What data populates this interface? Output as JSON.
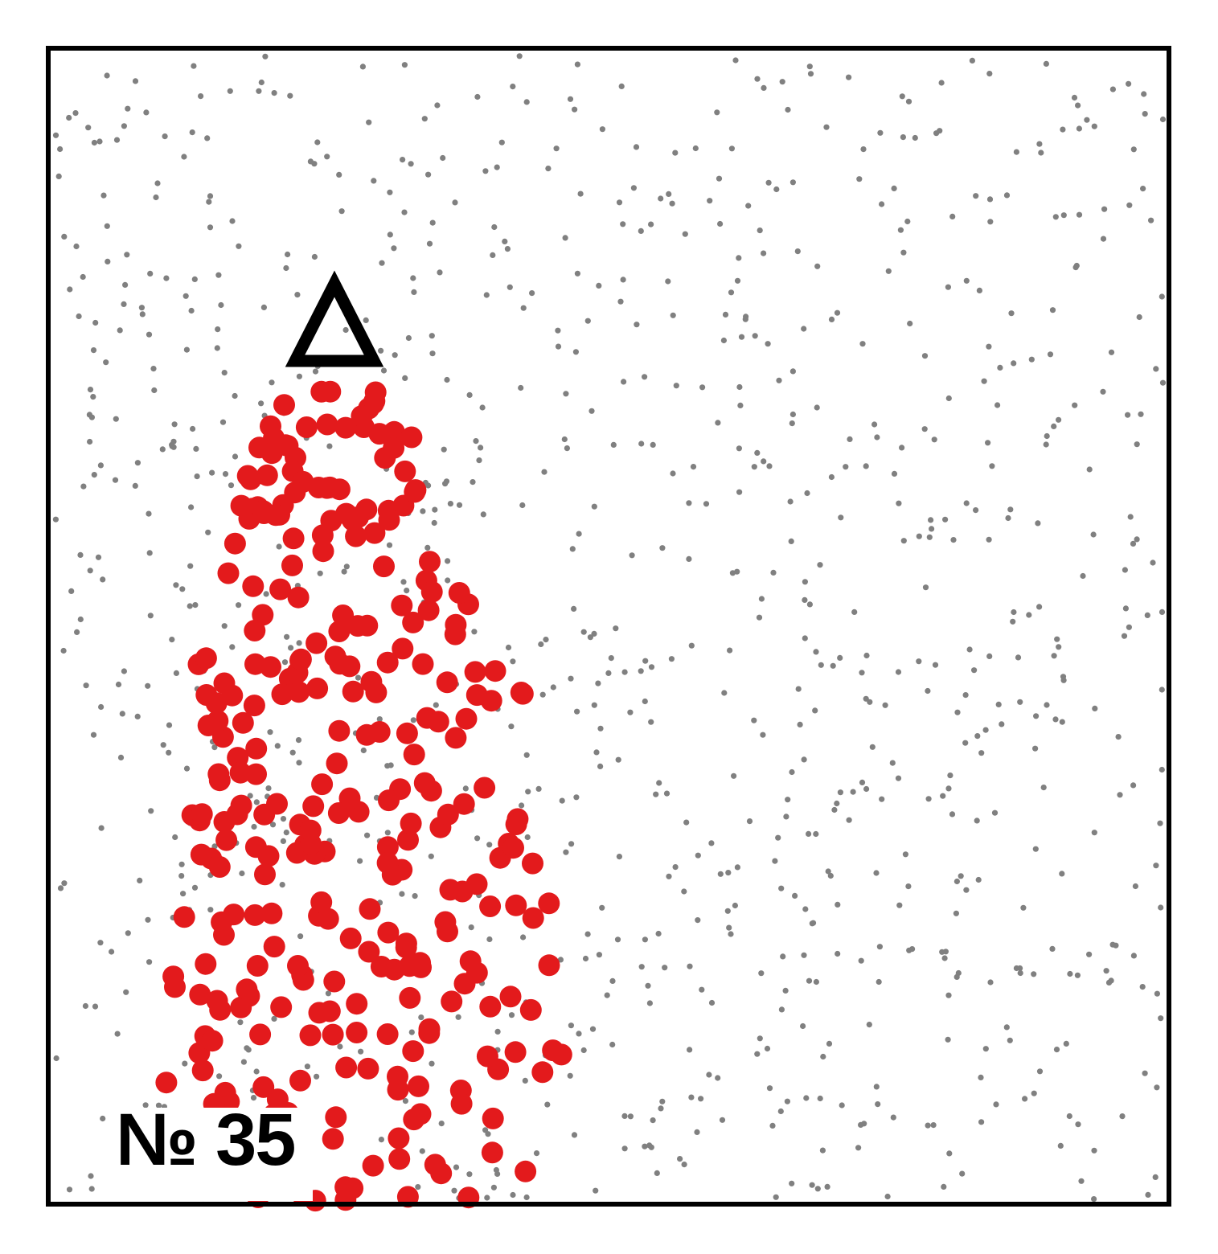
{
  "panel_number": "№ 35",
  "colors": {
    "background_dot": "#808080",
    "cluster_dot": "#e31a1c",
    "outline": "#000000",
    "background": "#ffffff"
  },
  "markers": {
    "apex": "triangle-outline-icon"
  }
}
